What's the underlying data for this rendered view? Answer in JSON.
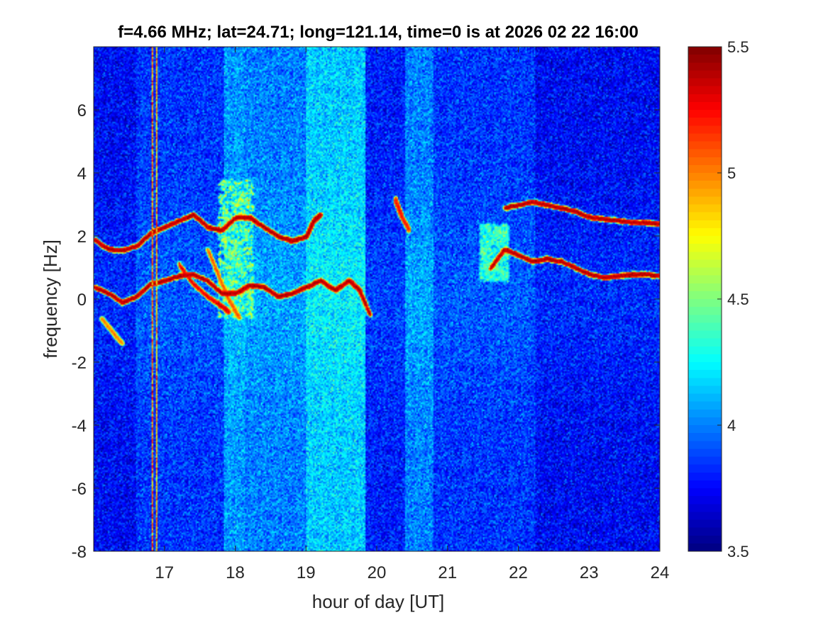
{
  "chart_data": {
    "type": "heatmap",
    "title": "f=4.66 MHz;  lat=24.71; long=121.14, time=0 is at 2026 02 22 16:00",
    "xlabel": "hour of day [UT]",
    "ylabel": "frequency [Hz]",
    "xlim": [
      16,
      24
    ],
    "ylim": [
      -8,
      8
    ],
    "xticks": [
      "17",
      "18",
      "19",
      "20",
      "21",
      "22",
      "23",
      "24"
    ],
    "xtick_values": [
      17,
      18,
      19,
      20,
      21,
      22,
      23,
      24
    ],
    "yticks": [
      "-8",
      "-6",
      "-4",
      "-2",
      "0",
      "2",
      "4",
      "6"
    ],
    "ytick_values": [
      -8,
      -6,
      -4,
      -2,
      0,
      2,
      4,
      6
    ],
    "colormap": "jet",
    "clim": [
      3.5,
      5.5
    ],
    "colorbar_ticks": [
      "3.5",
      "4",
      "4.5",
      "5",
      "5.5"
    ],
    "colorbar_tick_values": [
      3.5,
      4,
      4.5,
      5,
      5.5
    ],
    "grid": false,
    "background_level": 3.85,
    "bands": [
      {
        "x": [
          16.0,
          16.6
        ],
        "level": 3.75
      },
      {
        "x": [
          16.6,
          17.85
        ],
        "level": 3.85
      },
      {
        "x": [
          17.85,
          18.15
        ],
        "level": 4.05
      },
      {
        "x": [
          18.15,
          19.0
        ],
        "level": 4.0
      },
      {
        "x": [
          19.0,
          19.85
        ],
        "level": 4.15
      },
      {
        "x": [
          19.85,
          20.4
        ],
        "level": 3.8
      },
      {
        "x": [
          20.4,
          20.8
        ],
        "level": 4.0
      },
      {
        "x": [
          20.8,
          22.25
        ],
        "level": 3.85
      },
      {
        "x": [
          22.25,
          24.0
        ],
        "level": 3.75
      }
    ],
    "interference_lines": [
      {
        "x": 16.82,
        "level": 5.0
      },
      {
        "x": 16.88,
        "level": 4.9
      }
    ],
    "traces": [
      {
        "level": 5.3,
        "x": [
          16.0,
          16.2,
          16.4,
          16.6,
          16.8,
          17.0,
          17.2,
          17.4,
          17.6,
          17.8,
          18.0,
          18.2,
          18.4,
          18.6,
          18.8,
          19.0,
          19.1,
          19.2
        ],
        "y": [
          1.9,
          1.6,
          1.55,
          1.7,
          2.1,
          2.3,
          2.5,
          2.7,
          2.3,
          2.2,
          2.6,
          2.6,
          2.3,
          2.0,
          1.85,
          2.0,
          2.5,
          2.7
        ]
      },
      {
        "level": 5.3,
        "x": [
          16.0,
          16.2,
          16.4,
          16.6,
          16.8,
          17.0,
          17.2,
          17.4,
          17.6,
          17.8,
          18.0,
          18.2,
          18.4,
          18.6,
          18.8,
          19.0,
          19.2,
          19.4,
          19.6,
          19.75,
          19.9
        ],
        "y": [
          0.4,
          0.2,
          -0.1,
          0.1,
          0.5,
          0.6,
          0.75,
          0.8,
          0.6,
          0.2,
          0.2,
          0.45,
          0.4,
          0.1,
          0.2,
          0.4,
          0.6,
          0.3,
          0.6,
          0.3,
          -0.5
        ]
      },
      {
        "level": 5.2,
        "x": [
          17.2,
          17.4,
          17.6,
          17.8,
          17.9
        ],
        "y": [
          1.1,
          0.5,
          0.1,
          -0.2,
          -0.4
        ]
      },
      {
        "level": 5.0,
        "x": [
          17.6,
          17.75,
          17.9,
          18.05
        ],
        "y": [
          1.6,
          0.8,
          0.0,
          -0.6
        ]
      },
      {
        "level": 5.1,
        "x": [
          20.25,
          20.3,
          20.35,
          20.45
        ],
        "y": [
          3.2,
          2.9,
          2.6,
          2.2
        ]
      },
      {
        "level": 5.3,
        "x": [
          21.8,
          22.0,
          22.2,
          22.4,
          22.6,
          22.8,
          23.0,
          23.2,
          23.4,
          23.6,
          23.8,
          24.0
        ],
        "y": [
          2.9,
          3.0,
          3.1,
          3.0,
          2.9,
          2.8,
          2.6,
          2.55,
          2.5,
          2.45,
          2.45,
          2.4
        ]
      },
      {
        "level": 5.3,
        "x": [
          21.6,
          21.8,
          22.0,
          22.2,
          22.4,
          22.6,
          22.8,
          23.0,
          23.2,
          23.4,
          23.6,
          23.8,
          24.0
        ],
        "y": [
          1.0,
          1.6,
          1.4,
          1.2,
          1.3,
          1.2,
          1.0,
          0.8,
          0.7,
          0.75,
          0.8,
          0.8,
          0.75
        ]
      },
      {
        "level": 4.9,
        "x": [
          16.1,
          16.25,
          16.4
        ],
        "y": [
          -0.6,
          -1.0,
          -1.4
        ]
      }
    ],
    "hotspots": [
      {
        "x": [
          17.75,
          18.25
        ],
        "y": [
          -0.6,
          3.8
        ],
        "level": 4.55
      },
      {
        "x": [
          21.45,
          21.85
        ],
        "y": [
          0.6,
          2.4
        ],
        "level": 4.3
      }
    ]
  }
}
